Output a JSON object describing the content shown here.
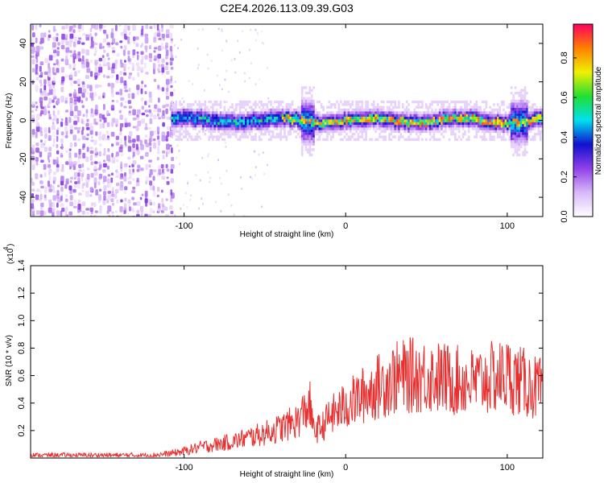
{
  "title": "C2E4.2026.113.09.39.G03",
  "chart_data": [
    {
      "type": "heatmap",
      "xlabel": "Height of straight line (km)",
      "ylabel": "Frequency (Hz)",
      "xlim": [
        -195,
        122
      ],
      "ylim": [
        -50,
        50
      ],
      "xticks": [
        -100,
        0,
        100
      ],
      "yticks": [
        -40,
        -20,
        0,
        20,
        40
      ],
      "colorbar": {
        "label": "Normalized spectral amplitude",
        "range": [
          0,
          0.97
        ],
        "ticks": [
          0.0,
          0.2,
          0.4,
          0.6,
          0.8
        ],
        "colors": [
          "#ffffff",
          "#d8b8f8",
          "#9040e8",
          "#1010d0",
          "#00e0f0",
          "#20e030",
          "#f0f000",
          "#ff8000",
          "#ff0060"
        ]
      },
      "description_values": {
        "noise_region_x": [
          -195,
          -108
        ],
        "signal_start_x": -108,
        "signal_center_hz": 0,
        "signal_halfwidth_hz": 6
      }
    },
    {
      "type": "line",
      "xlabel": "Height of straight line (km)",
      "ylabel": "SNR (10 * v/v)",
      "scale_label": "(x10",
      "scale_exp": "4",
      "scale_close": ")",
      "xlim": [
        -195,
        122
      ],
      "ylim": [
        0,
        1.4
      ],
      "xticks": [
        -100,
        0,
        100
      ],
      "yticks": [
        0.2,
        0.4,
        0.6,
        0.8,
        1.0,
        1.2,
        1.4
      ],
      "color": "#e83030",
      "series": [
        {
          "x": [
            -195,
            -180,
            -160,
            -140,
            -120,
            -110,
            -100,
            -90,
            -80,
            -70,
            -60,
            -50,
            -40,
            -30,
            -25,
            -22,
            -20,
            -15,
            -10,
            -5,
            0,
            10,
            20,
            30,
            40,
            50,
            60,
            70,
            80,
            90,
            100,
            110,
            120
          ],
          "y": [
            0.02,
            0.02,
            0.02,
            0.02,
            0.02,
            0.03,
            0.05,
            0.08,
            0.1,
            0.12,
            0.15,
            0.18,
            0.22,
            0.27,
            0.35,
            0.38,
            0.2,
            0.22,
            0.3,
            0.34,
            0.38,
            0.45,
            0.52,
            0.58,
            0.6,
            0.6,
            0.58,
            0.56,
            0.55,
            0.58,
            0.6,
            0.55,
            0.5
          ]
        }
      ]
    }
  ]
}
